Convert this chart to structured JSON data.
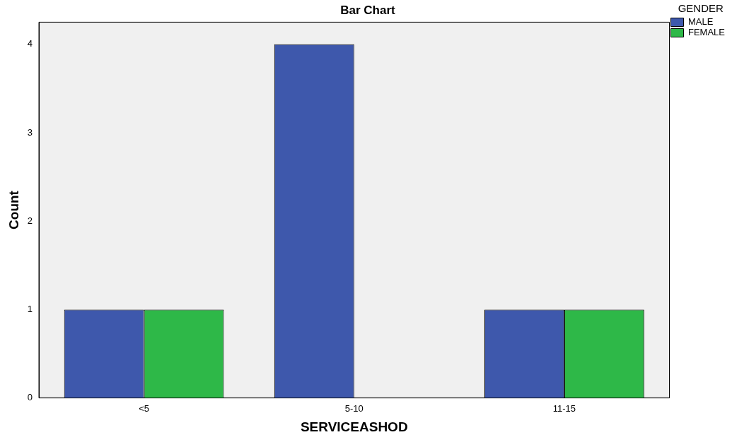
{
  "chart_data": {
    "type": "bar",
    "title": "Bar Chart",
    "xlabel": "SERVICEASHOD",
    "ylabel": "Count",
    "legend_title": "GENDER",
    "categories": [
      "<5",
      "5-10",
      "11-15"
    ],
    "series": [
      {
        "name": "MALE",
        "color": "#3e58ac",
        "values": [
          1,
          4,
          1
        ]
      },
      {
        "name": "FEMALE",
        "color": "#2eb848",
        "values": [
          1,
          0,
          1
        ]
      }
    ],
    "ylim": [
      0,
      4.25
    ],
    "yticks": [
      0,
      1,
      2,
      3,
      4
    ],
    "grid": false,
    "legend": "top right"
  }
}
